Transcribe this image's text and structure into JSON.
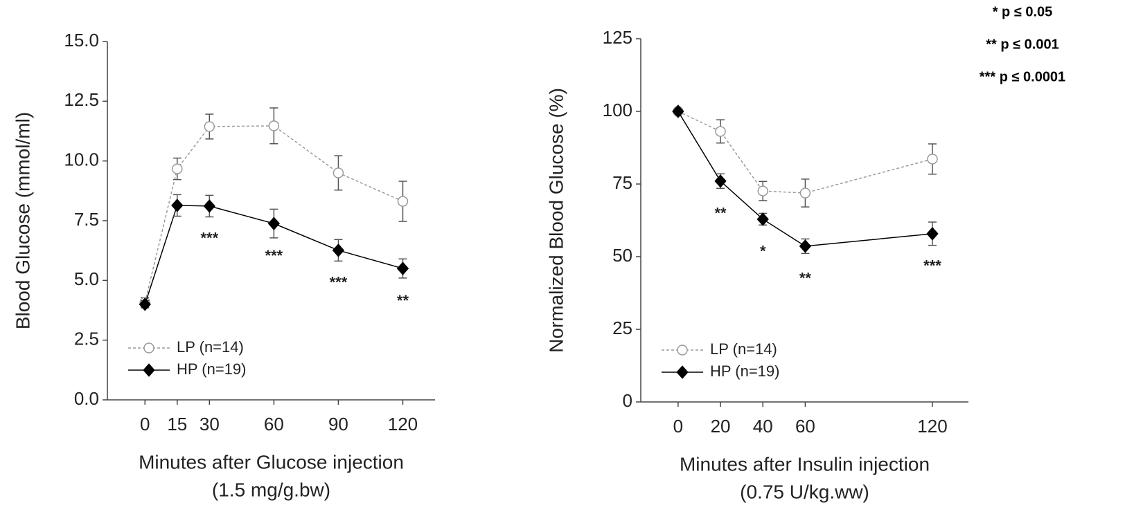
{
  "chart_data": [
    {
      "type": "line",
      "xlabel": [
        "Minutes after Glucose injection",
        "(1.5 mg/g.bw)"
      ],
      "ylabel": "Blood Glucose (mmol/ml)",
      "x": [
        0,
        15,
        30,
        60,
        90,
        120
      ],
      "xlim": [
        -17.5,
        135
      ],
      "xticks": [
        0,
        15,
        30,
        60,
        90,
        120
      ],
      "ylim": [
        0,
        15
      ],
      "yticks": [
        {
          "value": 0,
          "label": "0.0"
        },
        2.5,
        {
          "value": 5,
          "label": "5.0"
        },
        7.5,
        {
          "value": 10,
          "label": "10.0"
        },
        12.5,
        {
          "value": 15,
          "label": "15.0"
        }
      ],
      "legend": "lower left",
      "series": [
        {
          "name": "LP (n=14)",
          "color": "#9a9a9a",
          "marker": "circle-open",
          "dash": true,
          "values": [
            4.08,
            9.67,
            11.44,
            11.47,
            9.5,
            8.31
          ],
          "errors": [
            0.2,
            0.45,
            0.52,
            0.75,
            0.72,
            0.84
          ]
        },
        {
          "name": "HP (n=19)",
          "color": "#000000",
          "marker": "diamond",
          "dash": false,
          "values": [
            4.0,
            8.14,
            8.11,
            7.38,
            6.26,
            5.5
          ],
          "errors": [
            0.15,
            0.45,
            0.45,
            0.6,
            0.45,
            0.4
          ]
        }
      ],
      "annotations": [
        {
          "x": 30,
          "text": "***"
        },
        {
          "x": 60,
          "text": "***"
        },
        {
          "x": 90,
          "text": "***"
        },
        {
          "x": 120,
          "text": "**"
        }
      ]
    },
    {
      "type": "line",
      "xlabel": [
        "Minutes after Insulin injection",
        "(0.75 U/kg.ww)"
      ],
      "ylabel": "Normalized Blood Glucose (%)",
      "x": [
        0,
        20,
        40,
        60,
        120
      ],
      "xlim": [
        -17.6,
        137
      ],
      "xticks": [
        0,
        20,
        40,
        60,
        120
      ],
      "ylim": [
        0,
        125
      ],
      "yticks": [
        0,
        25,
        50,
        75,
        100,
        125
      ],
      "legend": "lower left",
      "series": [
        {
          "name": "LP (n=14)",
          "color": "#9a9a9a",
          "marker": "circle-open",
          "dash": true,
          "values": [
            100,
            93.1,
            72.6,
            71.9,
            83.6
          ],
          "errors": [
            0.5,
            4,
            3.3,
            4.8,
            5.2
          ]
        },
        {
          "name": "HP (n=19)",
          "color": "#000000",
          "marker": "diamond",
          "dash": false,
          "values": [
            100,
            76,
            62.9,
            53.6,
            57.9
          ],
          "errors": [
            0.5,
            2.5,
            2,
            2.5,
            4
          ]
        }
      ],
      "annotations": [
        {
          "x": 20,
          "text": "**"
        },
        {
          "x": 40,
          "text": "*"
        },
        {
          "x": 60,
          "text": "**"
        },
        {
          "x": 120,
          "text": "***"
        }
      ]
    }
  ],
  "significance_key": [
    "* p ≤ 0.05",
    "** p ≤ 0.001",
    "*** p ≤ 0.0001"
  ]
}
